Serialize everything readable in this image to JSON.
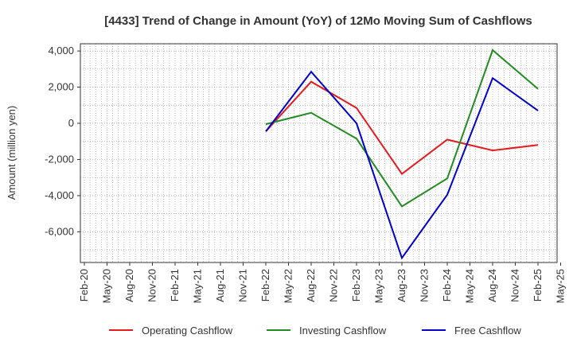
{
  "chart_data": {
    "type": "line",
    "title": "[4433]  Trend of Change in Amount (YoY) of 12Mo Moving Sum of Cashflows",
    "xlabel": "",
    "ylabel": "Amount (million yen)",
    "ylim": [
      -7700,
      4400
    ],
    "yticks": [
      4000,
      2000,
      0,
      -2000,
      -4000,
      -6000
    ],
    "ytick_labels": [
      "4,000",
      "2,000",
      "0",
      "-2,000",
      "-4,000",
      "-6,000"
    ],
    "x_labels": [
      "Feb-20",
      "May-20",
      "Aug-20",
      "Nov-20",
      "Feb-21",
      "May-21",
      "Aug-21",
      "Nov-21",
      "Feb-22",
      "May-22",
      "Aug-22",
      "Nov-22",
      "Feb-23",
      "May-23",
      "Aug-23",
      "Nov-23",
      "Feb-24",
      "May-24",
      "Aug-24",
      "Nov-24",
      "Feb-25",
      "May-25"
    ],
    "grid": true,
    "legend_position": "bottom",
    "series": [
      {
        "name": "Operating Cashflow",
        "color": "#e41a1c",
        "points": [
          [
            8,
            -450
          ],
          [
            10,
            2300
          ],
          [
            12,
            850
          ],
          [
            14,
            -2800
          ],
          [
            16,
            -900
          ],
          [
            18,
            -1500
          ],
          [
            20,
            -1200
          ]
        ]
      },
      {
        "name": "Investing Cashflow",
        "color": "#228b22",
        "points": [
          [
            8,
            -50
          ],
          [
            10,
            580
          ],
          [
            12,
            -850
          ],
          [
            14,
            -4600
          ],
          [
            16,
            -3050
          ],
          [
            18,
            4050
          ],
          [
            20,
            1900
          ]
        ]
      },
      {
        "name": "Free Cashflow",
        "color": "#0000cc",
        "points": [
          [
            8,
            -450
          ],
          [
            10,
            2850
          ],
          [
            12,
            0
          ],
          [
            14,
            -7450
          ],
          [
            16,
            -3950
          ],
          [
            18,
            2500
          ],
          [
            20,
            700
          ]
        ]
      }
    ]
  }
}
